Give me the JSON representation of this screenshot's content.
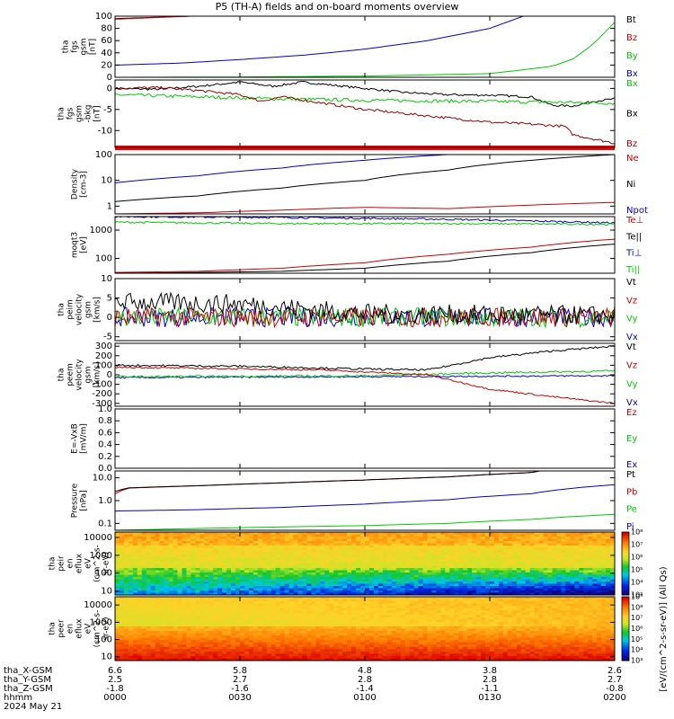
{
  "title": "P5 (TH-A) fields and on-board moments overview",
  "chart_data": [
    {
      "type": "line",
      "key": "fgs_btot",
      "ylabel": [
        "tha",
        "fgs",
        "gsm",
        "[nT]"
      ],
      "ylim": [
        0,
        100
      ],
      "yscale": "linear",
      "yticks": [
        0,
        20,
        40,
        60,
        80,
        100
      ],
      "legend": [
        {
          "name": "Bt",
          "color": "#000000"
        },
        {
          "name": "Bz",
          "color": "#cc0000"
        },
        {
          "name": "By",
          "color": "#00cc00"
        },
        {
          "name": "Bx",
          "color": "#0000cc"
        }
      ],
      "series": [
        {
          "name": "Bt",
          "color": "#000000",
          "x": [
            0,
            18
          ],
          "y": [
            96,
            100
          ]
        },
        {
          "name": "Bz",
          "color": "#cc0000",
          "x": [
            0,
            18
          ],
          "y": [
            95,
            100
          ]
        },
        {
          "name": "Bx",
          "color": "#0000cc",
          "x": [
            0,
            15,
            30,
            45,
            60,
            75,
            90,
            98
          ],
          "y": [
            20,
            23,
            29,
            36,
            46,
            60,
            80,
            100
          ]
        },
        {
          "name": "By",
          "color": "#00cc00",
          "x": [
            0,
            30,
            60,
            90,
            105,
            110,
            115,
            120
          ],
          "y": [
            0,
            0.5,
            2,
            6,
            18,
            30,
            55,
            90
          ]
        }
      ]
    },
    {
      "type": "line",
      "key": "fgs_comps",
      "ylabel": [
        "tha",
        "fgs",
        "gsm",
        "-bkg",
        "[nT]"
      ],
      "ylim": [
        -14,
        2
      ],
      "yscale": "linear",
      "yticks": [
        -10,
        -5,
        0
      ],
      "legend": [
        {
          "name": "Bx",
          "color": "#00cc00"
        },
        {
          "name": "Bx",
          "color": "#000000"
        },
        {
          "name": "Bz",
          "color": "#990000"
        }
      ],
      "series": [
        {
          "name": "Bx",
          "color": "#000000",
          "noise": 0.25,
          "x": [
            0,
            10,
            20,
            30,
            38,
            45,
            55,
            60,
            70,
            80,
            90,
            100,
            105,
            110,
            115,
            120
          ],
          "y": [
            0,
            -0.2,
            0.5,
            1.5,
            0.5,
            1.5,
            0.5,
            0,
            -1,
            -1.5,
            -1.6,
            -2,
            -4,
            -4.2,
            -3,
            -2.5
          ]
        },
        {
          "name": "Bx",
          "color": "#00cc00",
          "noise": 0.4,
          "x": [
            0,
            20,
            40,
            60,
            80,
            100,
            120
          ],
          "y": [
            -1.5,
            -2,
            -2.5,
            -2.8,
            -3,
            -3.2,
            -3.5
          ]
        },
        {
          "name": "Bz",
          "color": "#990000",
          "noise": 0.3,
          "x": [
            0,
            10,
            20,
            25,
            30,
            35,
            40,
            50,
            60,
            70,
            80,
            90,
            100,
            108,
            110,
            115,
            120
          ],
          "y": [
            0,
            0.2,
            -0.5,
            -1,
            -1.5,
            -3,
            -2,
            -3.5,
            -5,
            -6,
            -7,
            -8,
            -8.5,
            -9,
            -11,
            -12,
            -13
          ]
        }
      ]
    },
    {
      "type": "line",
      "key": "density",
      "ylabel": [
        "Density",
        "[cm-3]"
      ],
      "ylim": [
        0.5,
        100
      ],
      "yscale": "log",
      "yticks": [
        1,
        10,
        100
      ],
      "legend": [
        {
          "name": "Ne",
          "color": "#cc0000"
        },
        {
          "name": "Ni",
          "color": "#000000"
        },
        {
          "name": "Npot",
          "color": "#0000cc"
        }
      ],
      "series": [
        {
          "name": "Ni",
          "color": "#000000",
          "x": [
            0,
            20,
            40,
            60,
            80,
            100,
            120
          ],
          "y": [
            1.5,
            2.5,
            5,
            10,
            25,
            60,
            100
          ]
        },
        {
          "name": "Npot",
          "color": "#0000cc",
          "x": [
            0,
            20,
            40,
            60,
            80
          ],
          "y": [
            8,
            15,
            30,
            60,
            100
          ]
        },
        {
          "name": "Ne",
          "color": "#cc0000",
          "x": [
            0,
            20,
            40,
            60,
            80,
            100,
            120
          ],
          "y": [
            0.5,
            0.55,
            0.7,
            0.9,
            0.8,
            1.1,
            1.4
          ]
        }
      ]
    },
    {
      "type": "line",
      "key": "temperature",
      "ylabel": [
        "moqt3",
        "[eV]"
      ],
      "ylim": [
        30,
        3000
      ],
      "yscale": "log",
      "yticks": [
        100,
        1000
      ],
      "legend": [
        {
          "name": "Te⊥",
          "color": "#cc0000"
        },
        {
          "name": "Te||",
          "color": "#000000"
        },
        {
          "name": "Ti⊥",
          "color": "#0000cc"
        },
        {
          "name": "Ti||",
          "color": "#00cc00"
        }
      ],
      "series": [
        {
          "name": "Ti⊥",
          "color": "#0000cc",
          "noise": 0.03,
          "x": [
            0,
            40,
            80,
            120
          ],
          "y": [
            3000,
            2800,
            2400,
            1800
          ]
        },
        {
          "name": "Ti||",
          "color": "#00cc00",
          "noise": 0.03,
          "x": [
            0,
            40,
            80,
            120
          ],
          "y": [
            1900,
            1700,
            1700,
            1600
          ]
        },
        {
          "name": "Te⊥",
          "color": "#cc0000",
          "x": [
            0,
            20,
            40,
            60,
            80,
            100,
            120
          ],
          "y": [
            32,
            35,
            45,
            70,
            140,
            250,
            480
          ]
        },
        {
          "name": "Te||",
          "color": "#000000",
          "x": [
            0,
            20,
            40,
            60,
            80,
            100,
            120
          ],
          "y": [
            30,
            32,
            35,
            45,
            80,
            160,
            320
          ]
        }
      ]
    },
    {
      "type": "line",
      "key": "peim_velocity",
      "ylabel": [
        "tha",
        "peim",
        "velocity",
        "gsm",
        "[km/s]"
      ],
      "ylim": [
        -6,
        10
      ],
      "yscale": "linear",
      "yticks": [
        -5,
        0,
        5,
        10
      ],
      "legend": [
        {
          "name": "Vt",
          "color": "#000000"
        },
        {
          "name": "Vz",
          "color": "#cc0000"
        },
        {
          "name": "Vy",
          "color": "#00cc00"
        },
        {
          "name": "Vx",
          "color": "#0000cc"
        }
      ],
      "series": [
        {
          "name": "Vx",
          "color": "#0000cc",
          "noise": 2.5,
          "x": [
            0,
            30,
            60,
            120
          ],
          "y": [
            0,
            0,
            0,
            0
          ]
        },
        {
          "name": "Vy",
          "color": "#00cc00",
          "noise": 2.5,
          "x": [
            0,
            30,
            60,
            120
          ],
          "y": [
            0,
            0,
            0,
            0
          ]
        },
        {
          "name": "Vz",
          "color": "#cc0000",
          "noise": 2.5,
          "x": [
            0,
            30,
            60,
            120
          ],
          "y": [
            0,
            0,
            0,
            0
          ]
        },
        {
          "name": "Vt",
          "color": "#000000",
          "noise": 2.5,
          "x": [
            0,
            30,
            60,
            120
          ],
          "y": [
            4,
            3.5,
            1,
            0.5
          ]
        }
      ]
    },
    {
      "type": "line",
      "key": "peem_velocity",
      "ylabel": [
        "tha",
        "peem",
        "velocity",
        "gsm",
        "[km/s]"
      ],
      "ylim": [
        -330,
        330
      ],
      "yscale": "linear",
      "yticks": [
        -300,
        -200,
        -100,
        0,
        100,
        200,
        300
      ],
      "legend": [
        {
          "name": "Vt",
          "color": "#000000"
        },
        {
          "name": "Vz",
          "color": "#cc0000"
        },
        {
          "name": "Vy",
          "color": "#00cc00"
        },
        {
          "name": "Vx",
          "color": "#0000cc"
        }
      ],
      "series": [
        {
          "name": "Vx",
          "color": "#0000cc",
          "noise": 8,
          "x": [
            0,
            60,
            120
          ],
          "y": [
            -30,
            -20,
            -10
          ]
        },
        {
          "name": "Vy",
          "color": "#00cc00",
          "noise": 10,
          "x": [
            0,
            60,
            90,
            120
          ],
          "y": [
            -20,
            -10,
            20,
            40
          ]
        },
        {
          "name": "Vz",
          "color": "#cc0000",
          "noise": 8,
          "x": [
            0,
            50,
            75,
            90,
            105,
            120
          ],
          "y": [
            80,
            50,
            0,
            -150,
            -230,
            -300
          ]
        },
        {
          "name": "Vt",
          "color": "#000000",
          "noise": 10,
          "x": [
            0,
            30,
            60,
            75,
            90,
            105,
            120
          ],
          "y": [
            100,
            90,
            60,
            50,
            180,
            250,
            300
          ]
        }
      ]
    },
    {
      "type": "line",
      "key": "efield",
      "ylabel": [
        "E=-VxB",
        "[mV/m]"
      ],
      "ylim": [
        0,
        1
      ],
      "yscale": "linear",
      "yticks": [
        0,
        0.2,
        0.4,
        0.6,
        0.8,
        1.0
      ],
      "ytick_labels": [
        "0.0",
        "0.2",
        "0.4",
        "0.6",
        "0.8",
        "1.0"
      ],
      "legend": [
        {
          "name": "Ez",
          "color": "#cc0000"
        },
        {
          "name": "Ey",
          "color": "#00cc00"
        },
        {
          "name": "Ex",
          "color": "#0000cc"
        }
      ],
      "series": []
    },
    {
      "type": "line",
      "key": "pressure",
      "ylabel": [
        "Pressure",
        "[nPa]"
      ],
      "ylim": [
        0.05,
        20
      ],
      "yscale": "log",
      "yticks": [
        0.1,
        1,
        10
      ],
      "ytick_labels": [
        "0.1",
        "1.0",
        "10.0"
      ],
      "legend": [
        {
          "name": "Pt",
          "color": "#000000"
        },
        {
          "name": "Pb",
          "color": "#cc0000"
        },
        {
          "name": "Pe",
          "color": "#00cc00"
        },
        {
          "name": "Pi",
          "color": "#0000cc"
        }
      ],
      "series": [
        {
          "name": "Pb",
          "color": "#cc0000",
          "x": [
            0,
            3,
            20,
            40,
            60,
            80,
            100,
            102
          ],
          "y": [
            2,
            3.5,
            4.5,
            6,
            8,
            11,
            17,
            20
          ]
        },
        {
          "name": "Pt",
          "color": "#000000",
          "x": [
            0,
            3,
            20,
            40,
            60,
            80,
            100,
            102
          ],
          "y": [
            2.5,
            3.6,
            4.5,
            6,
            8,
            11,
            17,
            20
          ]
        },
        {
          "name": "Pi",
          "color": "#0000cc",
          "x": [
            0,
            20,
            40,
            60,
            80,
            100,
            120
          ],
          "y": [
            0.35,
            0.4,
            0.5,
            0.7,
            1.1,
            2,
            5
          ]
        },
        {
          "name": "Pe",
          "color": "#00cc00",
          "x": [
            0,
            20,
            40,
            60,
            80,
            100,
            120
          ],
          "y": [
            0.05,
            0.06,
            0.07,
            0.08,
            0.1,
            0.15,
            0.25
          ]
        }
      ]
    },
    {
      "type": "heatmap",
      "key": "peir_spec",
      "ylabel": [
        "tha",
        "peir",
        "en",
        "eflux",
        "eV",
        "(cm^2-s-",
        "sr-eV)"
      ],
      "ylim": [
        6,
        20000
      ],
      "yscale": "log",
      "yticks": [
        10,
        100,
        1000,
        10000
      ],
      "colorbar": {
        "range_exp": [
          3,
          8
        ],
        "labels": [
          "10³",
          "10⁴",
          "10⁵",
          "10⁶",
          "10⁷",
          "10⁸"
        ]
      }
    },
    {
      "type": "heatmap",
      "key": "peer_spec",
      "ylabel": [
        "tha",
        "peer",
        "en",
        "eflux",
        "eV",
        "(cm^2-s-",
        "sr-eV)"
      ],
      "ylim": [
        6,
        30000
      ],
      "yscale": "log",
      "yticks": [
        10,
        100,
        1000,
        10000
      ],
      "colorbar": {
        "range_exp": [
          3,
          9
        ],
        "labels": [
          "10³",
          "10⁴",
          "10⁵",
          "10⁶",
          "10⁷",
          "10⁸",
          "10⁹"
        ]
      }
    }
  ],
  "colorbar_unit": "[eV/(cm^2-s-sr-eV)] (All Qs)",
  "x_axis": {
    "row_labels": [
      "tha_X-GSM",
      "tha_Y-GSM",
      "tha_Z-GSM",
      "hhmm",
      "2024 May 21"
    ],
    "ticks": [
      {
        "x": 0,
        "vals": [
          "6.6",
          "2.5",
          "-1.8",
          "0000"
        ]
      },
      {
        "x": 30,
        "vals": [
          "5.8",
          "2.7",
          "-1.6",
          "0030"
        ]
      },
      {
        "x": 60,
        "vals": [
          "4.8",
          "2.8",
          "-1.4",
          "0100"
        ]
      },
      {
        "x": 90,
        "vals": [
          "3.8",
          "2.8",
          "-1.1",
          "0130"
        ]
      },
      {
        "x": 120,
        "vals": [
          "2.6",
          "2.7",
          "-0.8",
          "0200"
        ]
      }
    ]
  }
}
